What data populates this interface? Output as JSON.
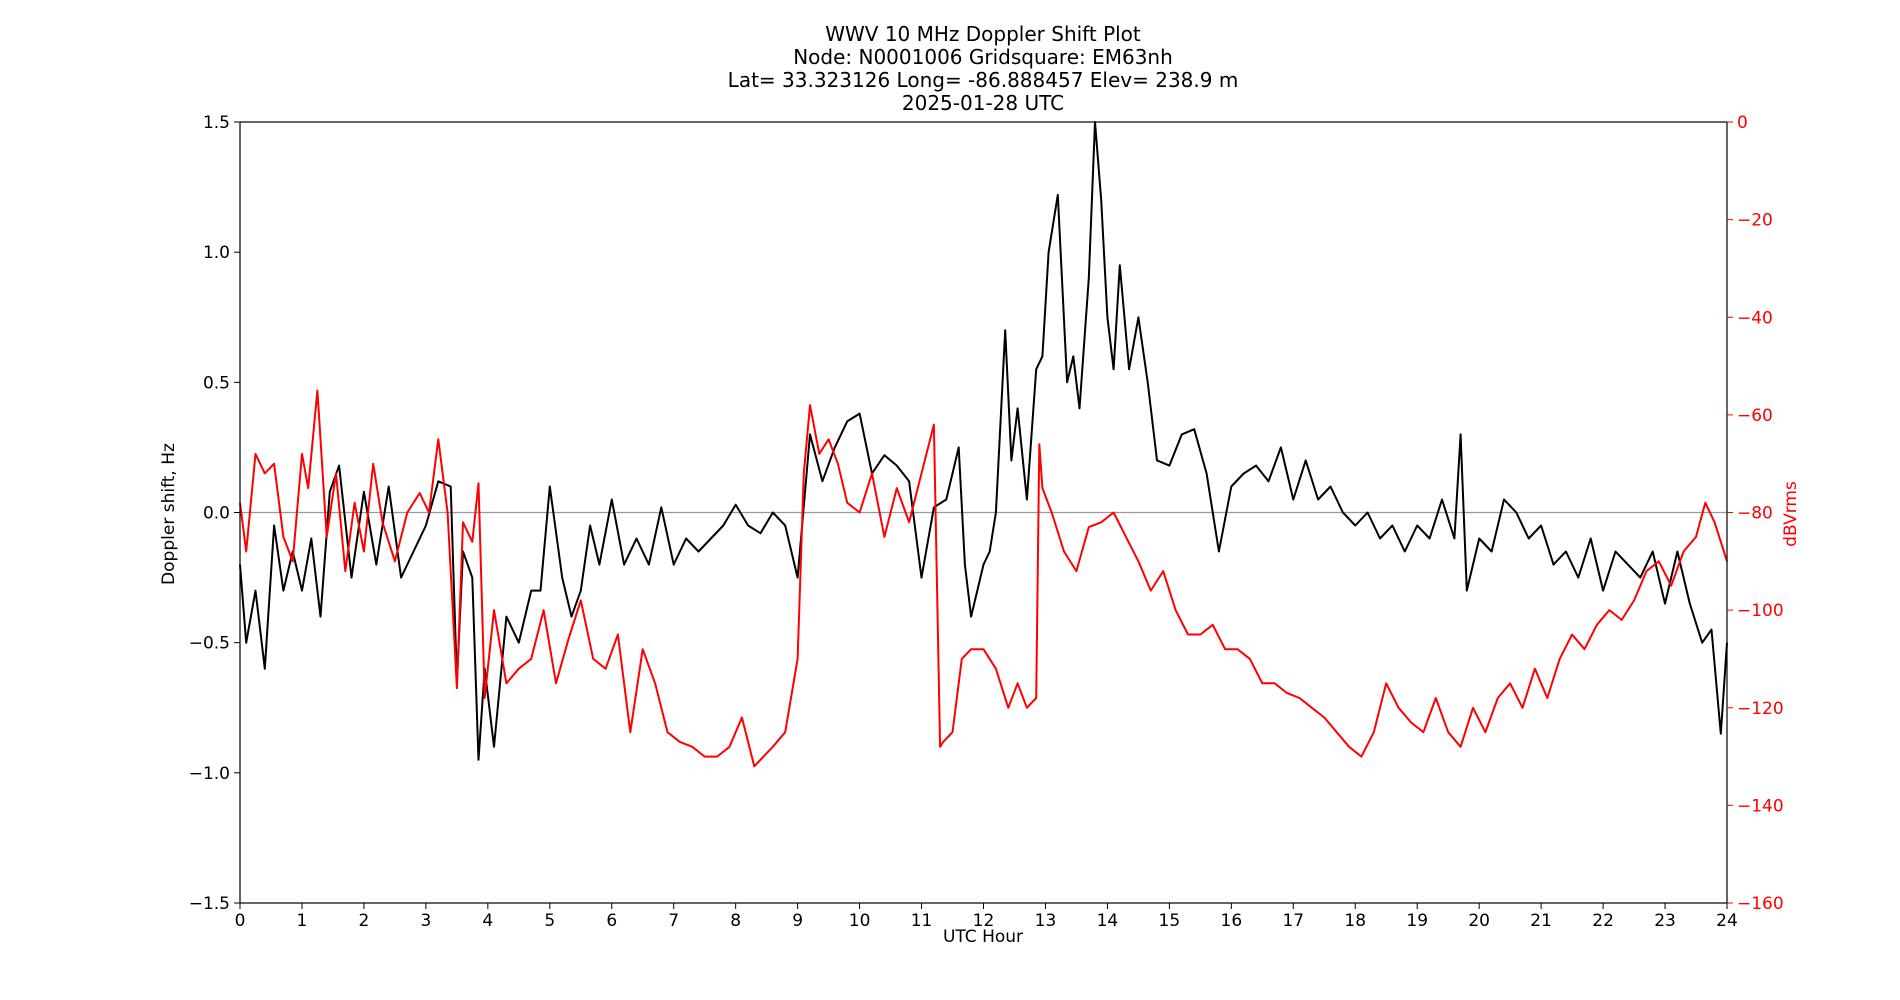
{
  "chart_data": {
    "type": "line",
    "title_lines": [
      "WWV 10 MHz Doppler Shift Plot",
      "Node:  N0001006     Gridsquare:  EM63nh",
      "Lat= 33.323126    Long= -86.888457    Elev= 238.9 m",
      "2025-01-28  UTC"
    ],
    "xlabel": "UTC Hour",
    "ylabel_left": "Doppler shift, Hz",
    "ylabel_right": "dBVrms",
    "xlim": [
      0,
      24
    ],
    "ylim_left": [
      -1.5,
      1.5
    ],
    "ylim_right": [
      -160,
      0
    ],
    "x_ticks": [
      "0",
      "1",
      "2",
      "3",
      "4",
      "5",
      "6",
      "7",
      "8",
      "9",
      "10",
      "11",
      "12",
      "13",
      "14",
      "15",
      "16",
      "17",
      "18",
      "19",
      "20",
      "21",
      "22",
      "23",
      "24"
    ],
    "y_ticks_left": [
      "1.5",
      "1.0",
      "0.5",
      "0.0",
      "−0.5",
      "−1.0",
      "−1.5"
    ],
    "y_ticks_right": [
      "0",
      "−20",
      "−40",
      "−60",
      "−80",
      "−100",
      "−120",
      "−140",
      "−160"
    ],
    "zero_line": true,
    "colors": {
      "doppler": "#000000",
      "power": "#ff0000",
      "zero_line": "#999999"
    },
    "series": [
      {
        "axis": "left",
        "x": [
          0,
          0.1,
          0.25,
          0.4,
          0.55,
          0.7,
          0.85,
          1.0,
          1.15,
          1.3,
          1.45,
          1.6,
          1.8,
          2.0,
          2.2,
          2.4,
          2.6,
          2.8,
          3.0,
          3.2,
          3.4,
          3.5,
          3.6,
          3.75,
          3.85,
          3.95,
          4.1,
          4.3,
          4.5,
          4.7,
          4.85,
          5.0,
          5.2,
          5.35,
          5.5,
          5.65,
          5.8,
          6.0,
          6.2,
          6.4,
          6.6,
          6.8,
          7.0,
          7.2,
          7.4,
          7.6,
          7.8,
          8.0,
          8.2,
          8.4,
          8.6,
          8.8,
          9.0,
          9.2,
          9.4,
          9.6,
          9.8,
          10.0,
          10.2,
          10.4,
          10.6,
          10.8,
          11.0,
          11.2,
          11.4,
          11.6,
          11.7,
          11.8,
          11.9,
          12.0,
          12.1,
          12.2,
          12.35,
          12.45,
          12.55,
          12.7,
          12.85,
          12.95,
          13.05,
          13.2,
          13.35,
          13.45,
          13.55,
          13.7,
          13.8,
          13.9,
          14.0,
          14.1,
          14.2,
          14.35,
          14.5,
          14.65,
          14.8,
          15.0,
          15.2,
          15.4,
          15.6,
          15.8,
          16.0,
          16.2,
          16.4,
          16.6,
          16.8,
          17.0,
          17.2,
          17.4,
          17.6,
          17.8,
          18.0,
          18.2,
          18.4,
          18.6,
          18.8,
          19.0,
          19.2,
          19.4,
          19.6,
          19.7,
          19.8,
          20.0,
          20.2,
          20.4,
          20.6,
          20.8,
          21.0,
          21.2,
          21.4,
          21.6,
          21.8,
          22.0,
          22.2,
          22.4,
          22.6,
          22.8,
          23.0,
          23.2,
          23.4,
          23.6,
          23.75,
          23.9,
          24.0
        ],
        "values": [
          -0.2,
          -0.5,
          -0.3,
          -0.6,
          -0.05,
          -0.3,
          -0.15,
          -0.3,
          -0.1,
          -0.4,
          0.08,
          0.18,
          -0.25,
          0.08,
          -0.2,
          0.1,
          -0.25,
          -0.15,
          -0.05,
          0.12,
          0.1,
          -0.65,
          -0.15,
          -0.25,
          -0.95,
          -0.6,
          -0.9,
          -0.4,
          -0.5,
          -0.3,
          -0.3,
          0.1,
          -0.25,
          -0.4,
          -0.3,
          -0.05,
          -0.2,
          0.05,
          -0.2,
          -0.1,
          -0.2,
          0.02,
          -0.2,
          -0.1,
          -0.15,
          -0.1,
          -0.05,
          0.03,
          -0.05,
          -0.08,
          0.0,
          -0.05,
          -0.25,
          0.3,
          0.12,
          0.25,
          0.35,
          0.38,
          0.15,
          0.22,
          0.18,
          0.12,
          -0.25,
          0.02,
          0.05,
          0.25,
          -0.2,
          -0.4,
          -0.3,
          -0.2,
          -0.15,
          0.0,
          0.7,
          0.2,
          0.4,
          0.05,
          0.55,
          0.6,
          1.0,
          1.22,
          0.5,
          0.6,
          0.4,
          0.9,
          1.5,
          1.2,
          0.75,
          0.55,
          0.95,
          0.55,
          0.75,
          0.5,
          0.2,
          0.18,
          0.3,
          0.32,
          0.15,
          -0.15,
          0.1,
          0.15,
          0.18,
          0.12,
          0.25,
          0.05,
          0.2,
          0.05,
          0.1,
          0.0,
          -0.05,
          0.0,
          -0.1,
          -0.05,
          -0.15,
          -0.05,
          -0.1,
          0.05,
          -0.1,
          0.3,
          -0.3,
          -0.1,
          -0.15,
          0.05,
          0.0,
          -0.1,
          -0.05,
          -0.2,
          -0.15,
          -0.25,
          -0.1,
          -0.3,
          -0.15,
          -0.2,
          -0.25,
          -0.15,
          -0.35,
          -0.15,
          -0.35,
          -0.5,
          -0.45,
          -0.85,
          -0.5
        ],
        "color": "#000000"
      },
      {
        "axis": "right",
        "x": [
          0,
          0.1,
          0.25,
          0.4,
          0.55,
          0.7,
          0.85,
          1.0,
          1.1,
          1.25,
          1.4,
          1.55,
          1.7,
          1.85,
          2.0,
          2.15,
          2.3,
          2.5,
          2.7,
          2.9,
          3.05,
          3.2,
          3.35,
          3.5,
          3.6,
          3.75,
          3.85,
          3.95,
          4.1,
          4.3,
          4.5,
          4.7,
          4.9,
          5.1,
          5.3,
          5.5,
          5.7,
          5.9,
          6.1,
          6.3,
          6.5,
          6.7,
          6.9,
          7.1,
          7.3,
          7.5,
          7.7,
          7.9,
          8.1,
          8.3,
          8.45,
          8.6,
          8.8,
          9.0,
          9.1,
          9.2,
          9.35,
          9.5,
          9.65,
          9.8,
          10.0,
          10.2,
          10.4,
          10.6,
          10.8,
          11.0,
          11.2,
          11.3,
          11.35,
          11.5,
          11.65,
          11.8,
          12.0,
          12.2,
          12.4,
          12.55,
          12.7,
          12.85,
          12.9,
          12.95,
          13.1,
          13.3,
          13.5,
          13.7,
          13.9,
          14.1,
          14.3,
          14.5,
          14.7,
          14.9,
          15.1,
          15.3,
          15.5,
          15.7,
          15.9,
          16.1,
          16.3,
          16.5,
          16.7,
          16.9,
          17.1,
          17.3,
          17.5,
          17.7,
          17.9,
          18.1,
          18.3,
          18.5,
          18.7,
          18.9,
          19.1,
          19.3,
          19.5,
          19.7,
          19.9,
          20.1,
          20.3,
          20.5,
          20.7,
          20.9,
          21.1,
          21.3,
          21.5,
          21.7,
          21.9,
          22.1,
          22.3,
          22.5,
          22.7,
          22.9,
          23.1,
          23.3,
          23.5,
          23.65,
          23.8,
          24.0
        ],
        "values": [
          -78,
          -88,
          -68,
          -72,
          -70,
          -85,
          -90,
          -68,
          -75,
          -55,
          -85,
          -72,
          -92,
          -78,
          -88,
          -70,
          -82,
          -90,
          -80,
          -76,
          -80,
          -65,
          -80,
          -116,
          -82,
          -86,
          -74,
          -118,
          -100,
          -115,
          -112,
          -110,
          -100,
          -115,
          -106,
          -98,
          -110,
          -112,
          -105,
          -125,
          -108,
          -115,
          -125,
          -127,
          -128,
          -130,
          -130,
          -128,
          -122,
          -132,
          -130,
          -128,
          -125,
          -110,
          -72,
          -58,
          -68,
          -65,
          -70,
          -78,
          -80,
          -72,
          -85,
          -75,
          -82,
          -72,
          -62,
          -128,
          -127,
          -125,
          -110,
          -108,
          -108,
          -112,
          -120,
          -115,
          -120,
          -118,
          -66,
          -75,
          -80,
          -88,
          -92,
          -83,
          -82,
          -80,
          -85,
          -90,
          -96,
          -92,
          -100,
          -105,
          -105,
          -103,
          -108,
          -108,
          -110,
          -115,
          -115,
          -117,
          -118,
          -120,
          -122,
          -125,
          -128,
          -130,
          -125,
          -115,
          -120,
          -123,
          -125,
          -118,
          -125,
          -128,
          -120,
          -125,
          -118,
          -115,
          -120,
          -112,
          -118,
          -110,
          -105,
          -108,
          -103,
          -100,
          -102,
          -98,
          -92,
          -90,
          -95,
          -88,
          -85,
          -78,
          -82,
          -90
        ],
        "color": "#ff0000"
      }
    ]
  }
}
